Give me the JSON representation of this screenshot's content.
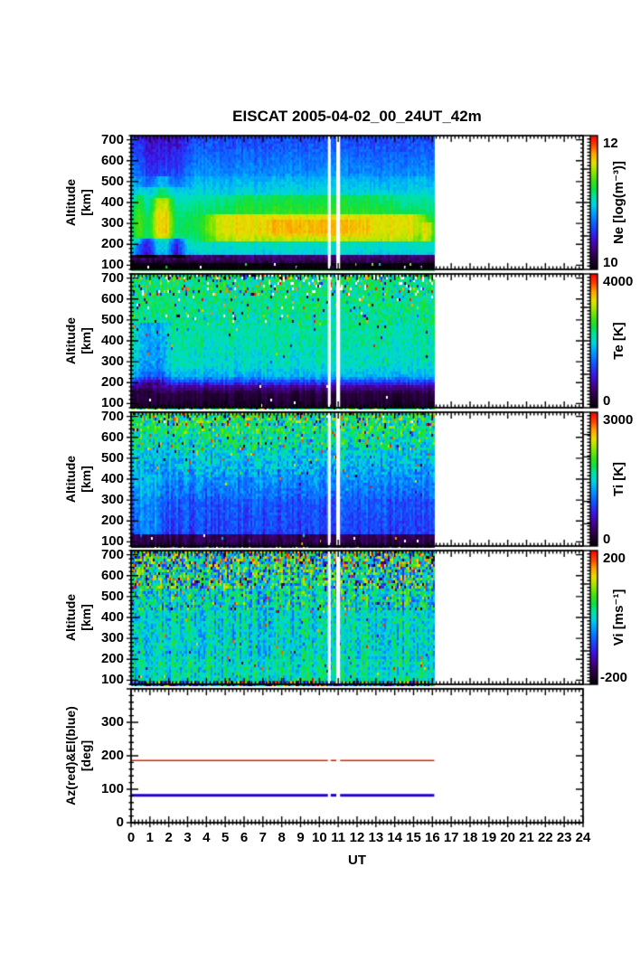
{
  "title": "EISCAT 2005-04-02_00_24UT_42m",
  "xlabel": "UT",
  "chart_data": {
    "type": "heatmap",
    "description": "EISCAT incoherent scatter radar summary plot: four altitude-time spectrograms (Ne, Te, Ti, Vi) plus antenna pointing (Az/El). Data from 0 to ~16.1 UT, rest of day empty.",
    "x": {
      "label": "UT",
      "min": 0,
      "max": 24,
      "tick_labels": [
        "0",
        "1",
        "2",
        "3",
        "4",
        "5",
        "6",
        "7",
        "8",
        "9",
        "10",
        "11",
        "12",
        "13",
        "14",
        "15",
        "16",
        "17",
        "18",
        "19",
        "20",
        "21",
        "22",
        "23",
        "24"
      ],
      "minor_step": 0.2
    },
    "data_ut_range": [
      0,
      16.1
    ],
    "gaps_ut": [
      [
        10.45,
        10.6
      ],
      [
        10.9,
        11.1
      ]
    ],
    "line_segments_ut": [
      [
        0,
        10.45
      ],
      [
        10.6,
        10.9
      ],
      [
        11.1,
        16.1
      ]
    ],
    "colormap": [
      [
        0.0,
        5,
        0,
        10
      ],
      [
        0.08,
        40,
        0,
        60
      ],
      [
        0.16,
        70,
        0,
        140
      ],
      [
        0.24,
        60,
        20,
        230
      ],
      [
        0.32,
        20,
        80,
        255
      ],
      [
        0.42,
        0,
        160,
        255
      ],
      [
        0.48,
        0,
        210,
        225
      ],
      [
        0.54,
        0,
        225,
        170
      ],
      [
        0.6,
        10,
        225,
        70
      ],
      [
        0.66,
        60,
        225,
        20
      ],
      [
        0.74,
        160,
        230,
        0
      ],
      [
        0.8,
        230,
        225,
        0
      ],
      [
        0.87,
        255,
        160,
        0
      ],
      [
        0.93,
        255,
        70,
        0
      ],
      [
        1.0,
        255,
        0,
        0
      ]
    ],
    "panels": [
      {
        "id": "ne",
        "ylabel_lines": [
          "Altitude",
          "[km]"
        ],
        "ylim": [
          80,
          720
        ],
        "yticks": [
          100,
          200,
          300,
          400,
          500,
          600,
          700
        ],
        "ytick_values": [
          100,
          200,
          300,
          400,
          500,
          600,
          700
        ],
        "ytick_labels": [
          "100",
          "200",
          "300",
          "400",
          "500",
          "600",
          "700"
        ],
        "ytick_minor": 20,
        "colorbar": {
          "title": "Ne [log(m⁻³)]",
          "min": 10,
          "max": 12,
          "top_label": "12",
          "bottom_label": "10",
          "major_ticks": [
            10,
            10.5,
            11,
            11.5,
            12
          ]
        },
        "col_noise": 0.05,
        "bands": [
          {
            "alt": [
              80,
              112
            ],
            "v": [
              10.0,
              10.0
            ],
            "noise": 0.05,
            "speckle": 0.02,
            "missing": 0.015
          },
          {
            "alt": [
              112,
              148
            ],
            "v": [
              10.15,
              10.3
            ],
            "noise": 0.1
          },
          {
            "alt": [
              148,
              208
            ],
            "v": [
              10.95,
              11.05
            ],
            "noise": 0.07
          },
          {
            "alt": [
              208,
              255
            ],
            "v": [
              11.1,
              11.18
            ],
            "noise": 0.05
          },
          {
            "alt": [
              255,
              335
            ],
            "v": [
              11.2,
              11.2
            ],
            "noise": 0.04
          },
          {
            "alt": [
              335,
              430
            ],
            "v": [
              11.18,
              11.05
            ],
            "noise": 0.05
          },
          {
            "alt": [
              430,
              530
            ],
            "v": [
              11.0,
              10.85
            ],
            "noise": 0.06
          },
          {
            "alt": [
              530,
              640
            ],
            "v": [
              10.8,
              10.68
            ],
            "noise": 0.07
          },
          {
            "alt": [
              640,
              720
            ],
            "v": [
              10.68,
              10.6
            ],
            "noise": 0.09
          }
        ],
        "mods": [
          {
            "ut": [
              0,
              3.2
            ],
            "alt": [
              480,
              720
            ],
            "delta": -0.18,
            "ramp": 0.8
          },
          {
            "ut": [
              0,
              3.0
            ],
            "alt": [
              138,
              232
            ],
            "delta": -0.5,
            "ramp": 0.6
          },
          {
            "ut": [
              0.9,
              2.3
            ],
            "alt": [
              130,
              420
            ],
            "delta": 0.45,
            "ramp": 0.45
          },
          {
            "ut": [
              1.0,
              2.2
            ],
            "alt": [
              420,
              530
            ],
            "delta": 0.2,
            "ramp": 0.5
          },
          {
            "ut": [
              0,
              0.7
            ],
            "alt": [
              200,
              430
            ],
            "delta": 0.15,
            "ramp": 0.3
          },
          {
            "ut": [
              3.5,
              16.1
            ],
            "alt": [
              215,
              340
            ],
            "delta": 0.4,
            "ramp": 1.3
          },
          {
            "ut": [
              6.5,
              13.0
            ],
            "alt": [
              235,
              320
            ],
            "delta": 0.08,
            "ramp": 1.0
          },
          {
            "ut": [
              15.3,
              16.1
            ],
            "alt": [
              215,
              310
            ],
            "delta": 0.25,
            "ramp": 0.25
          },
          {
            "ut": [
              4.0,
              15.0
            ],
            "alt": [
              340,
              430
            ],
            "delta": 0.12,
            "ramp": 2
          }
        ]
      },
      {
        "id": "te",
        "ylabel_lines": [
          "Altitude",
          "[km]"
        ],
        "ylim": [
          80,
          720
        ],
        "yticks": [
          100,
          200,
          300,
          400,
          500,
          600,
          700
        ],
        "ytick_values": [
          100,
          200,
          300,
          400,
          500,
          600,
          700
        ],
        "ytick_labels": [
          "100",
          "200",
          "300",
          "400",
          "500",
          "600",
          "700"
        ],
        "ytick_minor": 20,
        "colorbar": {
          "title": "Te [K]",
          "min": 0,
          "max": 4000,
          "top_label": "4000",
          "bottom_label": "0",
          "major_ticks": [
            0,
            1000,
            2000,
            3000,
            4000
          ]
        },
        "col_noise": 150,
        "bands": [
          {
            "alt": [
              80,
              150
            ],
            "v": [
              230,
              300
            ],
            "noise": 70,
            "missing": 0.004
          },
          {
            "alt": [
              150,
              190
            ],
            "v": [
              350,
              800
            ],
            "noise": 140,
            "missing": 0.003
          },
          {
            "alt": [
              190,
              225
            ],
            "v": [
              950,
              1650
            ],
            "noise": 200
          },
          {
            "alt": [
              225,
              290
            ],
            "v": [
              1750,
              2050
            ],
            "noise": 200
          },
          {
            "alt": [
              290,
              480
            ],
            "v": [
              2050,
              2200
            ],
            "noise": 220,
            "speckle": 0.015
          },
          {
            "alt": [
              480,
              620
            ],
            "v": [
              2200,
              2250
            ],
            "noise": 330,
            "speckle": 0.05,
            "missing": 0.008
          },
          {
            "alt": [
              620,
              700
            ],
            "v": [
              2250,
              2300
            ],
            "noise": 420,
            "speckle": 0.16,
            "missing": 0.05
          },
          {
            "alt": [
              700,
              720
            ],
            "v": [
              2250,
              2250
            ],
            "noise": 500,
            "speckle": 0.3,
            "missing": 0.13
          }
        ],
        "mods": [
          {
            "ut": [
              0,
              2.2
            ],
            "alt": [
              190,
              490
            ],
            "delta": -450,
            "ramp": 0.6
          },
          {
            "ut": [
              0,
              1.4
            ],
            "alt": [
              150,
              190
            ],
            "delta": -180,
            "ramp": 0.4
          }
        ]
      },
      {
        "id": "ti",
        "ylabel_lines": [
          "Altitude",
          "[km]"
        ],
        "ylim": [
          80,
          720
        ],
        "yticks": [
          100,
          200,
          300,
          400,
          500,
          600,
          700
        ],
        "ytick_values": [
          100,
          200,
          300,
          400,
          500,
          600,
          700
        ],
        "ytick_labels": [
          "100",
          "200",
          "300",
          "400",
          "500",
          "600",
          "700"
        ],
        "ytick_minor": 20,
        "colorbar": {
          "title": "Ti [K]",
          "min": 0,
          "max": 3000,
          "top_label": "3000",
          "bottom_label": "0",
          "major_ticks": [
            0,
            500,
            1000,
            1500,
            2000,
            2500,
            3000
          ]
        },
        "col_noise": 130,
        "bands": [
          {
            "alt": [
              80,
              135
            ],
            "v": [
              280,
              320
            ],
            "noise": 90,
            "speckle": 0.02,
            "missing": 0.012
          },
          {
            "alt": [
              135,
              300
            ],
            "v": [
              900,
              980
            ],
            "noise": 130
          },
          {
            "alt": [
              300,
              420
            ],
            "v": [
              1020,
              1230
            ],
            "noise": 170,
            "speckle": 0.01
          },
          {
            "alt": [
              420,
              540
            ],
            "v": [
              1280,
              1480
            ],
            "noise": 270,
            "speckle": 0.04
          },
          {
            "alt": [
              540,
              650
            ],
            "v": [
              1520,
              1780
            ],
            "noise": 430,
            "speckle": 0.1
          },
          {
            "alt": [
              650,
              720
            ],
            "v": [
              1680,
              1850
            ],
            "noise": 520,
            "speckle": 0.2,
            "missing": 0.01
          }
        ],
        "mods": [
          {
            "ut": [
              0,
              1.8
            ],
            "alt": [
              135,
              420
            ],
            "delta": 240,
            "ramp": 0.5
          }
        ]
      },
      {
        "id": "vi",
        "ylabel_lines": [
          "Altitude",
          "[km]"
        ],
        "ylim": [
          80,
          720
        ],
        "yticks": [
          100,
          200,
          300,
          400,
          500,
          600,
          700
        ],
        "ytick_values": [
          100,
          200,
          300,
          400,
          500,
          600,
          700
        ],
        "ytick_labels": [
          "100",
          "200",
          "300",
          "400",
          "500",
          "600",
          "700"
        ],
        "ytick_minor": 20,
        "colorbar": {
          "title": "Vi [ms⁻¹]",
          "min": -200,
          "max": 200,
          "top_label": "200",
          "bottom_label": "-200",
          "major_ticks": [
            -200,
            -100,
            0,
            100,
            200
          ]
        },
        "col_noise": 30,
        "bands": [
          {
            "alt": [
              80,
              100
            ],
            "v": [
              0,
              0
            ],
            "noise": 120,
            "speckle": 0.35
          },
          {
            "alt": [
              100,
              200
            ],
            "v": [
              8,
              8
            ],
            "noise": 38,
            "speckle": 0.02
          },
          {
            "alt": [
              200,
              430
            ],
            "v": [
              0,
              0
            ],
            "noise": 42,
            "speckle": 0.02
          },
          {
            "alt": [
              430,
              540
            ],
            "v": [
              5,
              10
            ],
            "noise": 70,
            "speckle": 0.07
          },
          {
            "alt": [
              540,
              640
            ],
            "v": [
              10,
              18
            ],
            "noise": 105,
            "speckle": 0.17
          },
          {
            "alt": [
              640,
              720
            ],
            "v": [
              18,
              28
            ],
            "noise": 135,
            "speckle": 0.32
          }
        ],
        "mods": []
      },
      {
        "id": "azel",
        "ylabel_lines": [
          "Az(red)&El(blue)",
          "[deg]"
        ],
        "ylim": [
          0,
          400
        ],
        "yticks": [
          0,
          100,
          200,
          300,
          400
        ],
        "ytick_values": [
          0,
          100,
          200,
          300
        ],
        "ytick_labels": [
          "0",
          "100",
          "200",
          "300"
        ],
        "ytick_minor": 20,
        "lines": [
          {
            "name": "Azimuth",
            "value": 186,
            "color": "#dd2200",
            "width": 1.6
          },
          {
            "name": "Elevation",
            "value": 82,
            "color": "#2200cc",
            "width": 3
          }
        ]
      }
    ]
  }
}
